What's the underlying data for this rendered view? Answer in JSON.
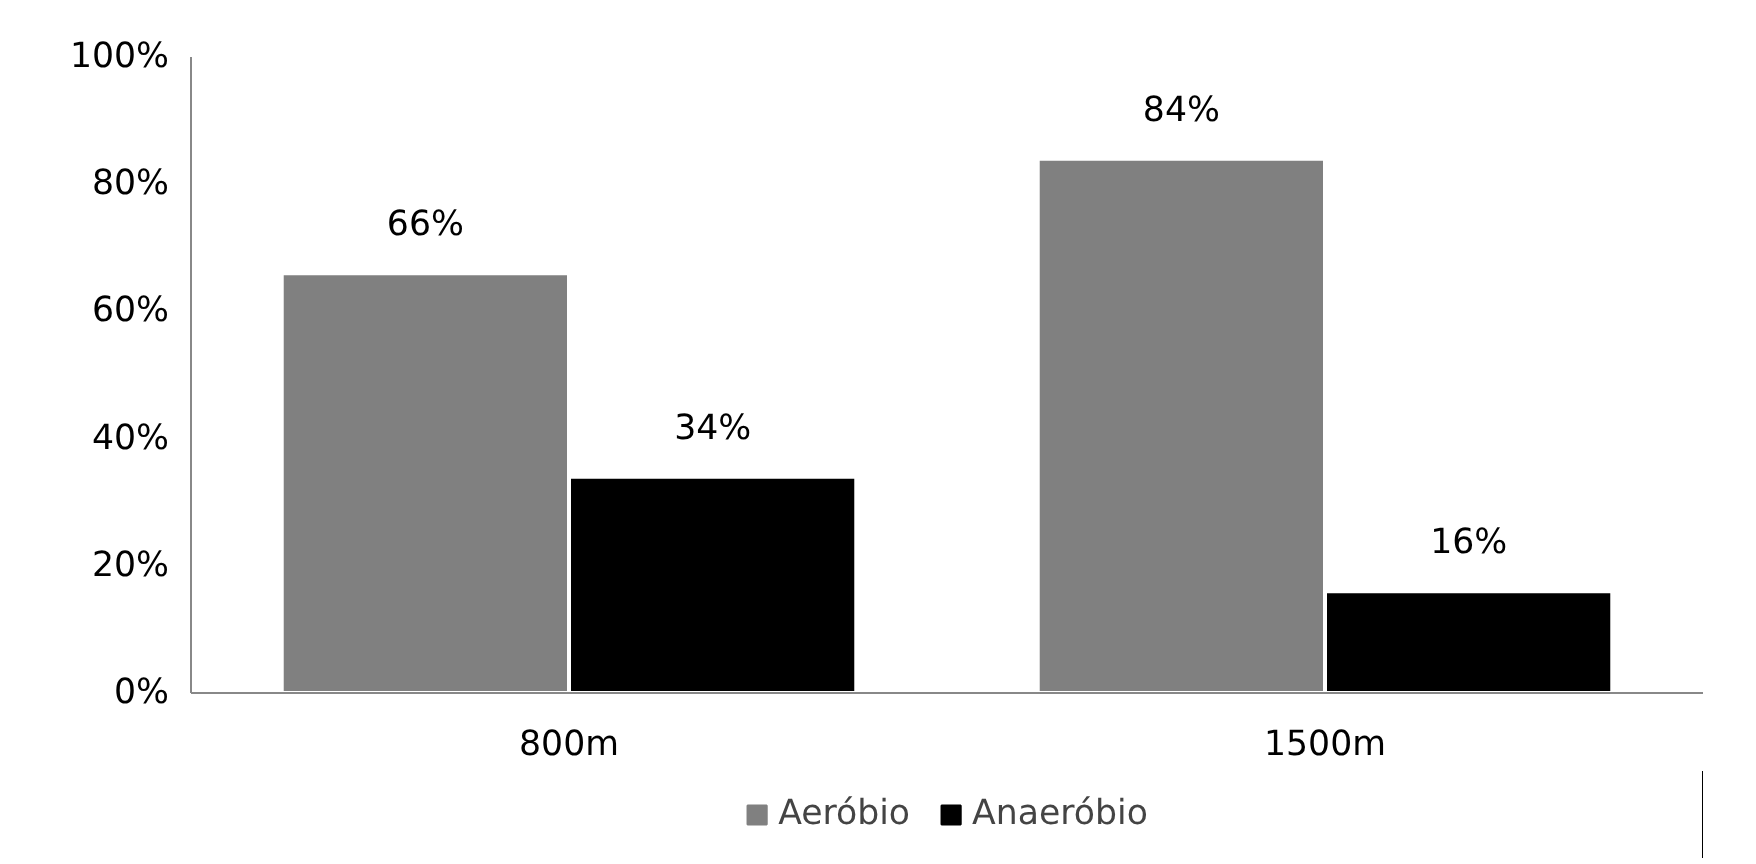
{
  "chart_data": {
    "type": "bar",
    "categories": [
      "800m",
      "1500m"
    ],
    "series": [
      {
        "name": "Aeróbio",
        "color": "#808080",
        "values": [
          66,
          84
        ],
        "value_labels": [
          "66%",
          "84%"
        ]
      },
      {
        "name": "Anaeróbio",
        "color": "#000000",
        "values": [
          34,
          16
        ],
        "value_labels": [
          "34%",
          "16%"
        ]
      }
    ],
    "ylim": [
      0,
      100
    ],
    "yticks": [
      {
        "value": 0,
        "label": "0%"
      },
      {
        "value": 20,
        "label": "20%"
      },
      {
        "value": 40,
        "label": "40%"
      },
      {
        "value": 60,
        "label": "60%"
      },
      {
        "value": 80,
        "label": "80%"
      },
      {
        "value": 100,
        "label": "100%"
      }
    ],
    "grid": false,
    "legend": "bottom"
  }
}
